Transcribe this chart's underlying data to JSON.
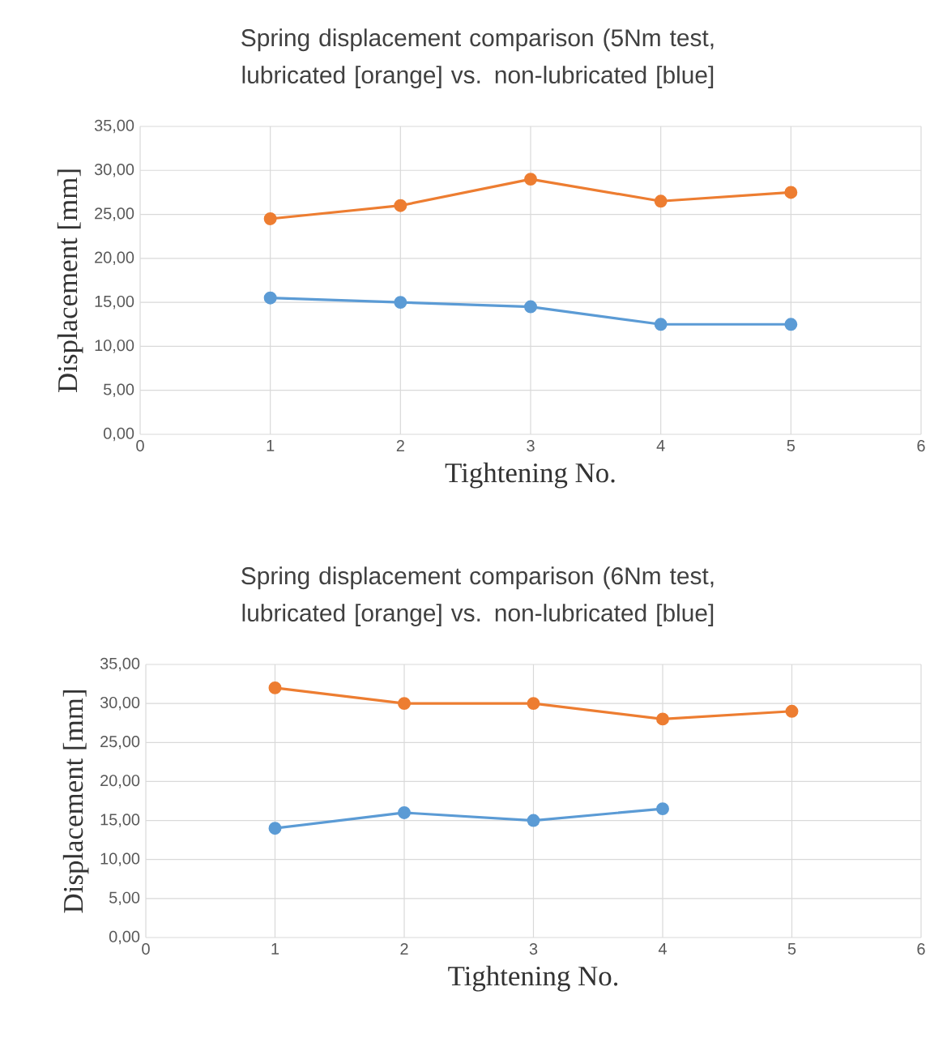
{
  "chart_data": [
    {
      "type": "line",
      "title": "Spring displacement comparison (5Nm test, lubricated [orange] vs. non-lubricated [blue]",
      "xlabel": "Tightening No.",
      "ylabel": "Displacement [mm]",
      "x": [
        1,
        2,
        3,
        4,
        5
      ],
      "series": [
        {
          "color": "#ed7d31",
          "values": [
            24.5,
            26,
            29,
            26.5,
            27.5
          ]
        },
        {
          "color": "#5b9bd5",
          "values": [
            15.5,
            15,
            14.5,
            12.5,
            12.5
          ]
        }
      ],
      "xlim": [
        0,
        6
      ],
      "xticks": [
        0,
        1,
        2,
        3,
        4,
        5,
        6
      ],
      "ylim": [
        0,
        35
      ],
      "yticks": [
        {
          "value": 0,
          "label": "0,00"
        },
        {
          "value": 5,
          "label": "5,00"
        },
        {
          "value": 10,
          "label": "10,00"
        },
        {
          "value": 15,
          "label": "15,00"
        },
        {
          "value": 20,
          "label": "20,00"
        },
        {
          "value": 25,
          "label": "25,00"
        },
        {
          "value": 30,
          "label": "30,00"
        },
        {
          "value": 35,
          "label": "35,00"
        }
      ],
      "grid": true,
      "marker": "circle"
    },
    {
      "type": "line",
      "title": "Spring displacement comparison (6Nm test, lubricated [orange] vs. non-lubricated [blue]",
      "xlabel": "Tightening No.",
      "ylabel": "Displacement [mm]",
      "x": [
        1,
        2,
        3,
        4,
        5
      ],
      "series": [
        {
          "color": "#ed7d31",
          "values": [
            32,
            30,
            30,
            28,
            29
          ]
        },
        {
          "color": "#5b9bd5",
          "values": [
            14,
            16,
            15,
            16.5,
            null
          ]
        }
      ],
      "xlim": [
        0,
        6
      ],
      "xticks": [
        0,
        1,
        2,
        3,
        4,
        5,
        6
      ],
      "ylim": [
        0,
        35
      ],
      "yticks": [
        {
          "value": 0,
          "label": "0,00"
        },
        {
          "value": 5,
          "label": "5,00"
        },
        {
          "value": 10,
          "label": "10,00"
        },
        {
          "value": 15,
          "label": "15,00"
        },
        {
          "value": 20,
          "label": "20,00"
        },
        {
          "value": 25,
          "label": "25,00"
        },
        {
          "value": 30,
          "label": "30,00"
        },
        {
          "value": 35,
          "label": "35,00"
        }
      ],
      "grid": true,
      "marker": "circle"
    }
  ]
}
